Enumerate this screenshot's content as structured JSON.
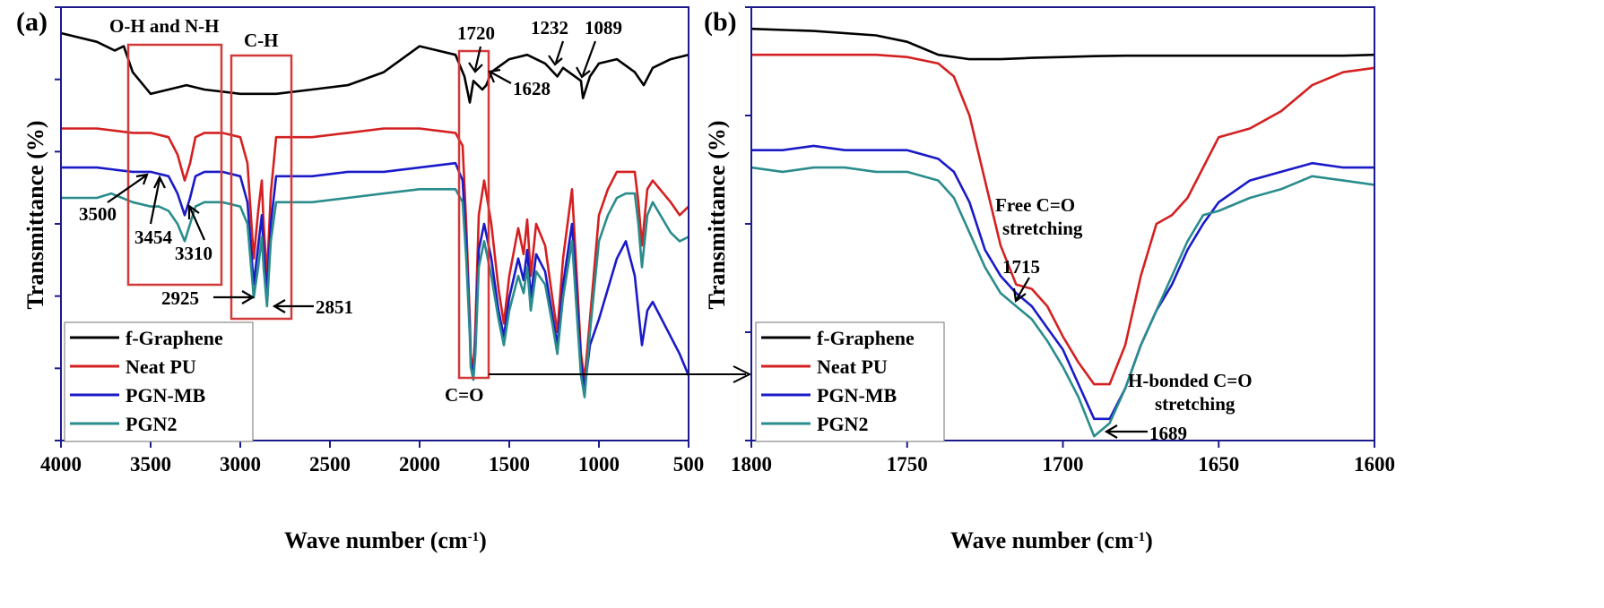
{
  "figure": {
    "panels": [
      "(a)",
      "(b)"
    ]
  },
  "legend": [
    "f-Graphene",
    "Neat PU",
    "PGN-MB",
    "PGN2"
  ],
  "colors": {
    "f-Graphene": "#000000",
    "Neat PU": "#d42020",
    "PGN-MB": "#1a1ac8",
    "PGN2": "#2a8c8c",
    "box": "#d23a3a",
    "axis": "#1a1a8c"
  },
  "chart_data": [
    {
      "panel": "(a)",
      "type": "line",
      "xlabel": "Wave number (cm-1)",
      "xlabel_main": "Wave number (cm",
      "xlabel_sup": "-1",
      "xlabel_end": ")",
      "ylabel": "Transmittance (%)",
      "xlim": [
        4000,
        500
      ],
      "x_reversed": true,
      "xticks": [
        4000,
        3500,
        3000,
        2500,
        2000,
        1500,
        1000,
        500
      ],
      "ylim": [
        0,
        100
      ],
      "y_tick_labels": false,
      "series": [
        {
          "name": "f-Graphene",
          "x": [
            4000,
            3800,
            3700,
            3650,
            3600,
            3500,
            3400,
            3300,
            3200,
            3000,
            2800,
            2600,
            2400,
            2200,
            2100,
            2000,
            1900,
            1800,
            1750,
            1720,
            1700,
            1650,
            1628,
            1600,
            1500,
            1400,
            1300,
            1232,
            1200,
            1100,
            1089,
            1050,
            1000,
            900,
            800,
            750,
            700,
            600,
            500
          ],
          "y": [
            94,
            92,
            90,
            91,
            85,
            80,
            81,
            82,
            81,
            80,
            80,
            81,
            82,
            85,
            88,
            91,
            90,
            89,
            84,
            78,
            83,
            81,
            82,
            85,
            88,
            89,
            87,
            84,
            86,
            83,
            79,
            84,
            87,
            88,
            85,
            82,
            86,
            88,
            89
          ]
        },
        {
          "name": "Neat PU",
          "x": [
            4000,
            3800,
            3600,
            3500,
            3400,
            3350,
            3310,
            3280,
            3250,
            3200,
            3100,
            3000,
            2960,
            2925,
            2900,
            2880,
            2870,
            2851,
            2830,
            2800,
            2600,
            2400,
            2200,
            2000,
            1800,
            1760,
            1740,
            1720,
            1715,
            1700,
            1690,
            1670,
            1640,
            1600,
            1560,
            1530,
            1500,
            1450,
            1420,
            1400,
            1380,
            1350,
            1300,
            1260,
            1232,
            1200,
            1150,
            1100,
            1080,
            1050,
            1000,
            950,
            900,
            850,
            800,
            780,
            760,
            730,
            700,
            600,
            550,
            500
          ],
          "y": [
            72,
            72,
            71,
            71,
            70,
            66,
            60,
            64,
            70,
            71,
            71,
            70,
            64,
            42,
            53,
            60,
            50,
            38,
            57,
            70,
            70,
            71,
            72,
            72,
            71,
            68,
            50,
            28,
            20,
            16,
            25,
            52,
            60,
            50,
            35,
            27,
            38,
            49,
            43,
            51,
            38,
            50,
            45,
            33,
            25,
            42,
            58,
            20,
            14,
            28,
            52,
            58,
            62,
            62,
            62,
            55,
            45,
            58,
            60,
            55,
            52,
            54
          ]
        },
        {
          "name": "PGN-MB",
          "x": [
            4000,
            3800,
            3600,
            3500,
            3400,
            3350,
            3310,
            3280,
            3250,
            3200,
            3100,
            3000,
            2960,
            2925,
            2900,
            2880,
            2870,
            2851,
            2830,
            2800,
            2600,
            2400,
            2200,
            2000,
            1800,
            1760,
            1740,
            1720,
            1715,
            1700,
            1689,
            1670,
            1640,
            1600,
            1560,
            1530,
            1500,
            1450,
            1420,
            1400,
            1380,
            1350,
            1300,
            1260,
            1232,
            1200,
            1150,
            1100,
            1080,
            1050,
            1000,
            950,
            900,
            850,
            800,
            780,
            760,
            730,
            700,
            600,
            550,
            500
          ],
          "y": [
            63,
            63,
            62,
            62,
            61,
            57,
            52,
            56,
            61,
            62,
            62,
            61,
            55,
            36,
            45,
            52,
            44,
            34,
            50,
            61,
            61,
            62,
            62,
            63,
            64,
            60,
            45,
            26,
            18,
            15,
            22,
            44,
            50,
            42,
            30,
            24,
            33,
            42,
            37,
            44,
            33,
            43,
            39,
            29,
            22,
            36,
            50,
            18,
            12,
            22,
            28,
            35,
            42,
            46,
            38,
            30,
            22,
            30,
            32,
            24,
            20,
            15
          ]
        },
        {
          "name": "PGN2",
          "x": [
            4000,
            3800,
            3720,
            3600,
            3500,
            3454,
            3400,
            3350,
            3310,
            3280,
            3250,
            3200,
            3100,
            3000,
            2960,
            2925,
            2900,
            2880,
            2870,
            2851,
            2830,
            2800,
            2600,
            2400,
            2200,
            2000,
            1800,
            1760,
            1740,
            1720,
            1715,
            1700,
            1689,
            1670,
            1640,
            1600,
            1560,
            1530,
            1500,
            1450,
            1420,
            1400,
            1380,
            1350,
            1300,
            1260,
            1232,
            1200,
            1150,
            1100,
            1080,
            1050,
            1000,
            950,
            900,
            850,
            800,
            780,
            760,
            730,
            700,
            600,
            550,
            500
          ],
          "y": [
            56,
            56,
            57,
            55,
            54,
            54,
            53,
            50,
            46,
            50,
            54,
            55,
            55,
            54,
            50,
            33,
            40,
            47,
            40,
            31,
            46,
            55,
            55,
            56,
            57,
            58,
            58,
            55,
            42,
            24,
            17,
            14,
            20,
            40,
            46,
            38,
            28,
            22,
            30,
            38,
            34,
            40,
            30,
            39,
            36,
            27,
            20,
            33,
            46,
            15,
            10,
            25,
            46,
            52,
            56,
            57,
            57,
            50,
            40,
            52,
            55,
            48,
            46,
            47
          ]
        }
      ],
      "annotations": [
        "O-H and N-H",
        "C-H",
        "1720",
        "1232",
        "1089",
        "1628",
        "3500",
        "3454",
        "3310",
        "2925",
        "2851",
        "C=O"
      ]
    },
    {
      "panel": "(b)",
      "type": "line",
      "xlabel": "Wave number (cm-1)",
      "xlabel_main": "Wave number (cm",
      "xlabel_sup": "-1",
      "xlabel_end": ")",
      "ylabel": "Transmittance (%)",
      "xlim": [
        1800,
        1600
      ],
      "x_reversed": true,
      "xticks": [
        1800,
        1750,
        1700,
        1650,
        1600
      ],
      "ylim": [
        0,
        100
      ],
      "y_tick_labels": false,
      "series": [
        {
          "name": "f-Graphene",
          "x": [
            1800,
            1780,
            1760,
            1750,
            1740,
            1730,
            1720,
            1710,
            1700,
            1690,
            1680,
            1670,
            1660,
            1650,
            1640,
            1630,
            1620,
            1610,
            1600
          ],
          "y": [
            95,
            94.5,
            93.5,
            92,
            89,
            88,
            88,
            88.3,
            88.5,
            88.7,
            88.8,
            88.8,
            88.8,
            88.8,
            88.8,
            88.8,
            88.8,
            88.8,
            89
          ]
        },
        {
          "name": "Neat PU",
          "x": [
            1800,
            1780,
            1760,
            1750,
            1740,
            1735,
            1730,
            1725,
            1720,
            1715,
            1710,
            1705,
            1700,
            1695,
            1690,
            1685,
            1680,
            1675,
            1670,
            1665,
            1660,
            1655,
            1650,
            1640,
            1630,
            1620,
            1610,
            1600
          ],
          "y": [
            89,
            89,
            89,
            88.5,
            87,
            84,
            75,
            60,
            45,
            36,
            35,
            31,
            24,
            18,
            13,
            13,
            22,
            38,
            50,
            52,
            56,
            63,
            70,
            72,
            76,
            82,
            85,
            86
          ]
        },
        {
          "name": "PGN-MB",
          "x": [
            1800,
            1790,
            1780,
            1770,
            1760,
            1750,
            1740,
            1735,
            1730,
            1725,
            1720,
            1715,
            1710,
            1705,
            1700,
            1695,
            1690,
            1685,
            1680,
            1675,
            1670,
            1665,
            1660,
            1655,
            1650,
            1640,
            1630,
            1620,
            1610,
            1600
          ],
          "y": [
            67,
            67,
            68,
            67,
            67,
            67,
            65,
            62,
            55,
            44,
            38,
            34,
            31,
            26,
            21,
            13,
            5,
            5,
            12,
            22,
            30,
            36,
            44,
            50,
            55,
            60,
            62,
            64,
            63,
            63
          ]
        },
        {
          "name": "PGN2",
          "x": [
            1800,
            1790,
            1780,
            1770,
            1760,
            1750,
            1740,
            1735,
            1730,
            1725,
            1720,
            1715,
            1710,
            1705,
            1700,
            1695,
            1690,
            1685,
            1680,
            1675,
            1670,
            1665,
            1660,
            1655,
            1650,
            1640,
            1630,
            1620,
            1610,
            1600
          ],
          "y": [
            63,
            62,
            63,
            63,
            62,
            62,
            60,
            56,
            48,
            40,
            34,
            31,
            28,
            23,
            17,
            10,
            1,
            4,
            12,
            22,
            30,
            38,
            46,
            52,
            53,
            56,
            58,
            61,
            60,
            59
          ]
        }
      ],
      "annotations": [
        "Free C=O",
        "stretching",
        "1715",
        "H-bonded C=O",
        "stretching",
        "1689"
      ]
    }
  ]
}
